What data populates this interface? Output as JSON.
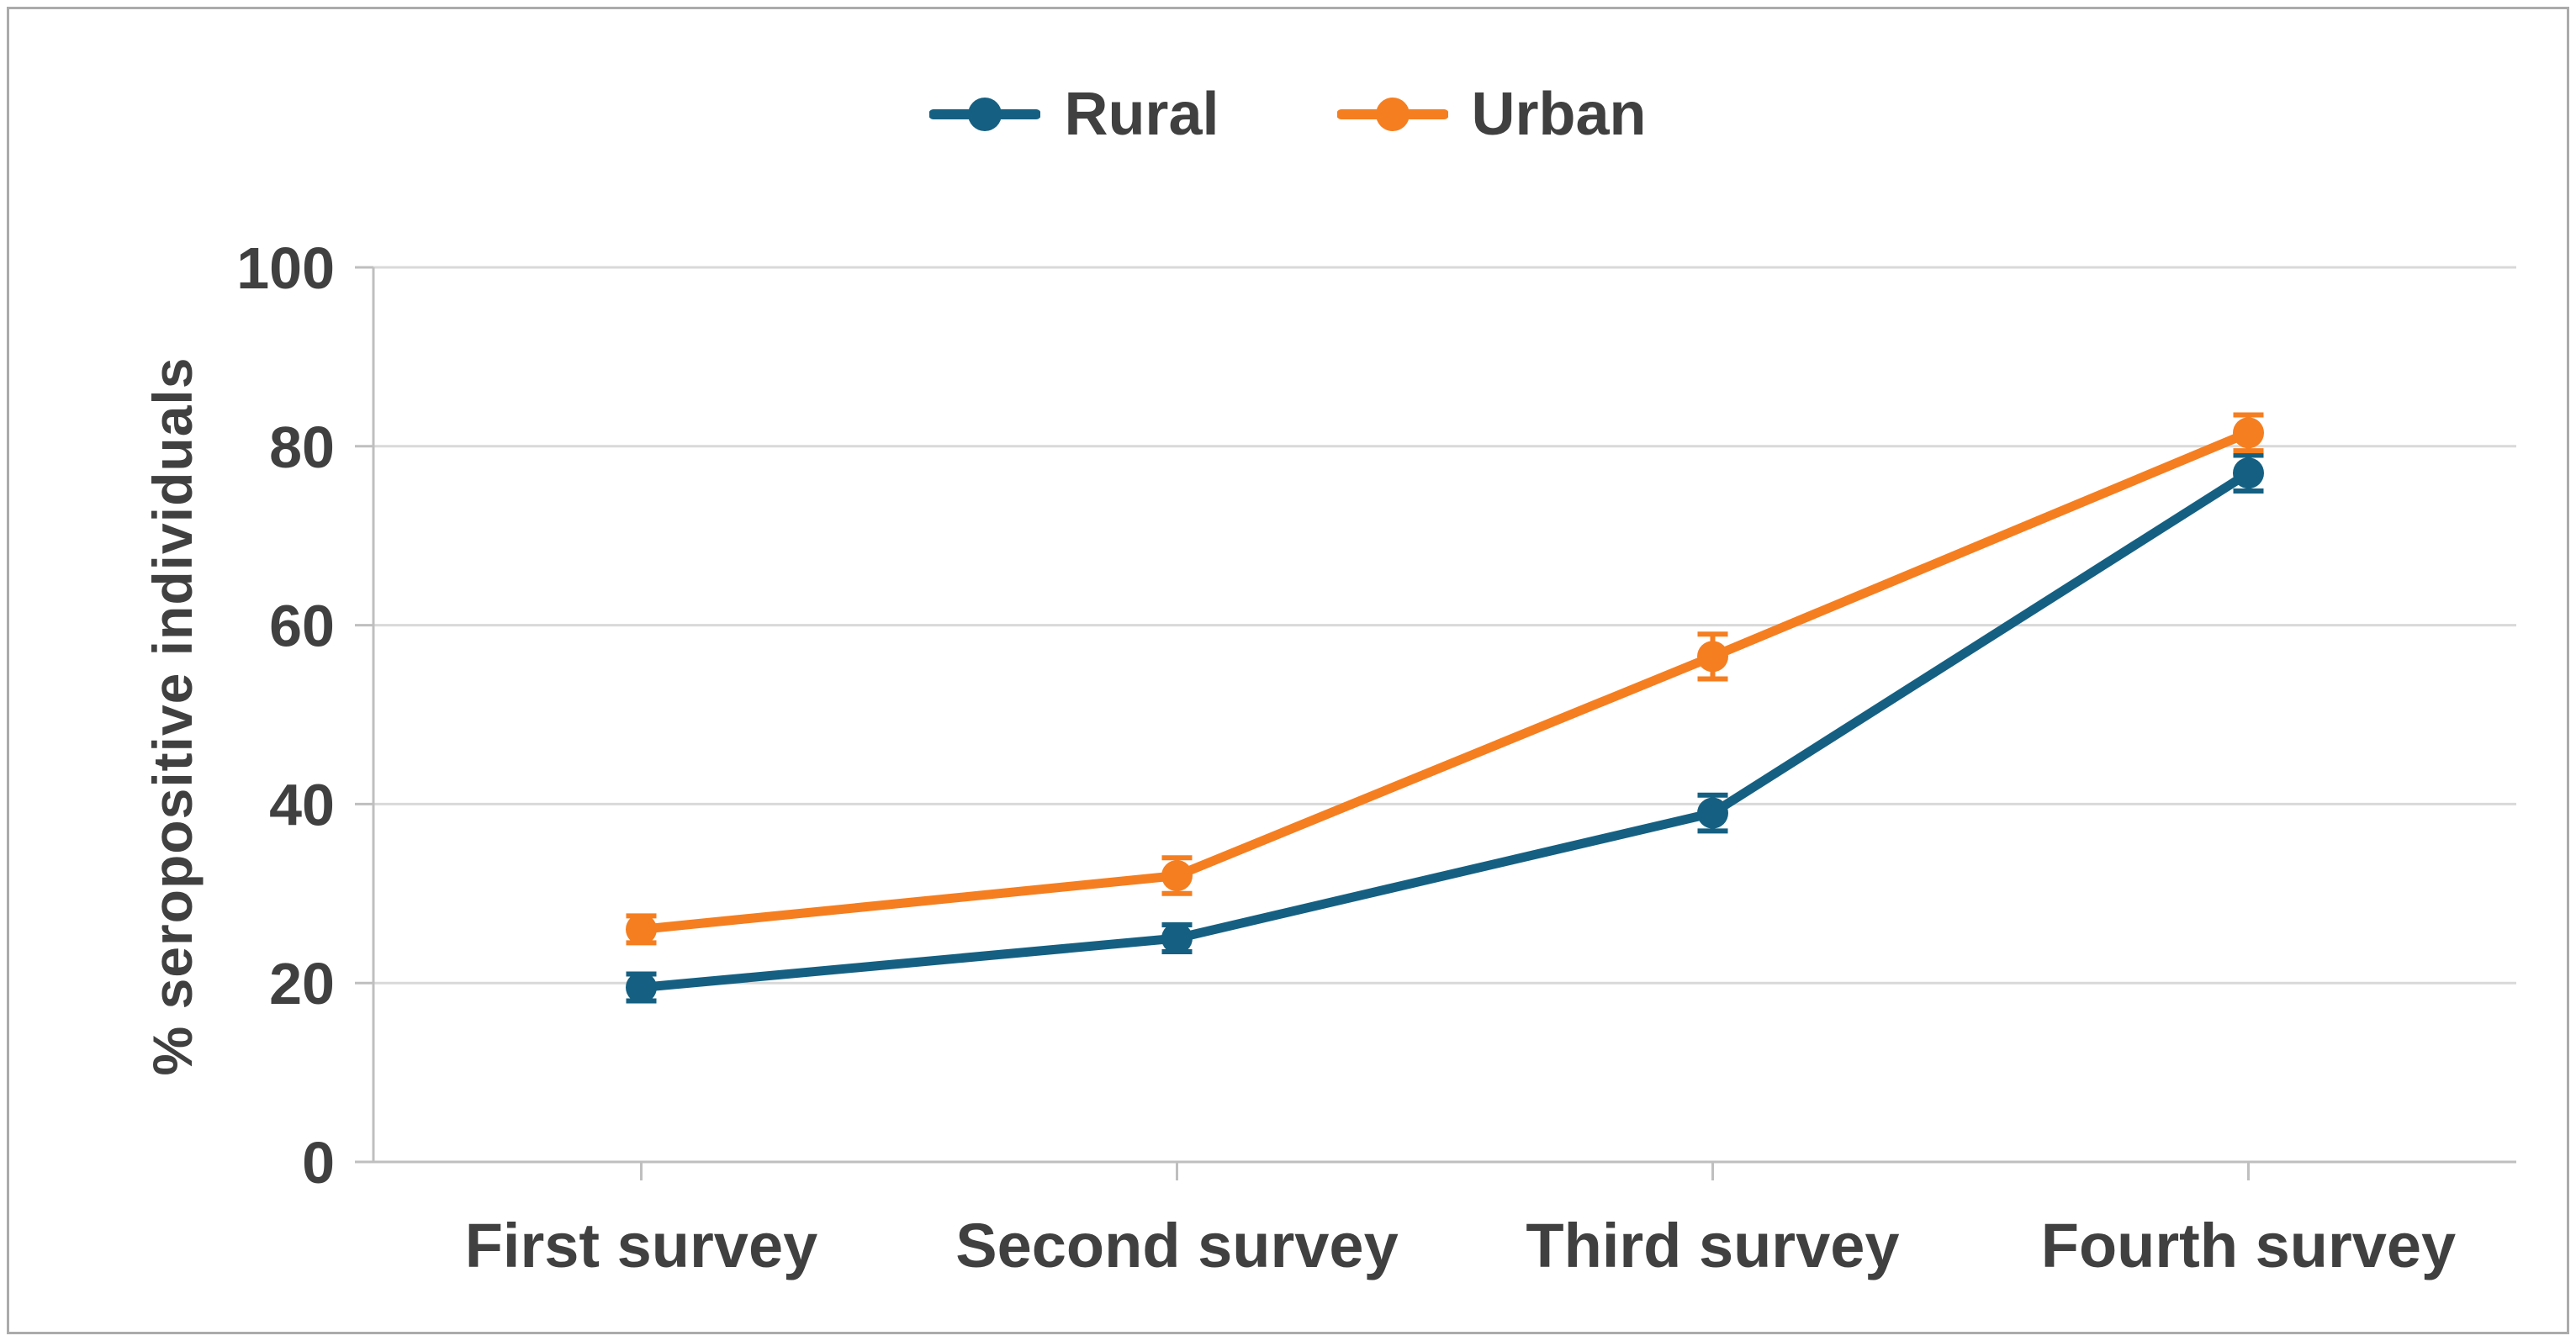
{
  "figure": {
    "border_color": "#ababab",
    "background": "#ffffff",
    "text_color": "#404040"
  },
  "legend": {
    "position": "top-center",
    "items": [
      {
        "label": "Rural",
        "color": "#156082"
      },
      {
        "label": "Urban",
        "color": "#F57E20"
      }
    ]
  },
  "chart_data": {
    "type": "line",
    "title": "",
    "xlabel": "",
    "ylabel": "% seropositive individuals",
    "categories": [
      "First survey",
      "Second survey",
      "Third survey",
      "Fourth survey"
    ],
    "series": [
      {
        "name": "Rural",
        "color": "#156082",
        "values": [
          19.5,
          25,
          39,
          77
        ],
        "errors": [
          1.5,
          1.5,
          2,
          2
        ]
      },
      {
        "name": "Urban",
        "color": "#F57E20",
        "values": [
          26,
          32,
          56.5,
          81.5
        ],
        "errors": [
          1.5,
          2,
          2.5,
          2
        ]
      }
    ],
    "ylim": [
      0,
      100
    ],
    "ytick_step": 20,
    "yticks": [
      0,
      20,
      40,
      60,
      80,
      100
    ],
    "grid": "horizontal",
    "grid_color": "#d9d9d9",
    "axis_color": "#bfbfbf",
    "legend_position": "top-center",
    "error_bars": true,
    "marker": "circle"
  }
}
